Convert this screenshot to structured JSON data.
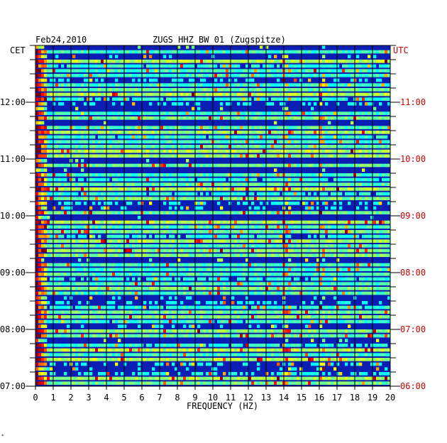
{
  "chart_data": {
    "type": "heatmap",
    "date": "Feb24,2010",
    "title": "ZUGS HHZ BW 01 (Zugspitze)",
    "left_timezone": "CET",
    "right_timezone": "UTC",
    "xlabel": "FREQUENCY (HZ)",
    "xlim": [
      0,
      20
    ],
    "x_ticks": [
      "0",
      "1",
      "2",
      "3",
      "4",
      "5",
      "6",
      "7",
      "8",
      "9",
      "10",
      "11",
      "12",
      "13",
      "14",
      "15",
      "16",
      "17",
      "18",
      "19",
      "20"
    ],
    "left_time_ticks": [
      "07:00",
      "08:00",
      "09:00",
      "10:00",
      "11:00",
      "12:00"
    ],
    "right_time_ticks": [
      "06:00",
      "07:00",
      "08:00",
      "09:00",
      "10:00",
      "11:00"
    ],
    "time_range_cet": [
      "07:00",
      "13:00"
    ],
    "rows_per_hour": 12,
    "colors": {
      "background": "#0a1eb4",
      "low": "#00008c",
      "high": "#ff0000",
      "gridline": "#000000",
      "utc_label": "#cc0000"
    },
    "footer_mark": "*"
  }
}
